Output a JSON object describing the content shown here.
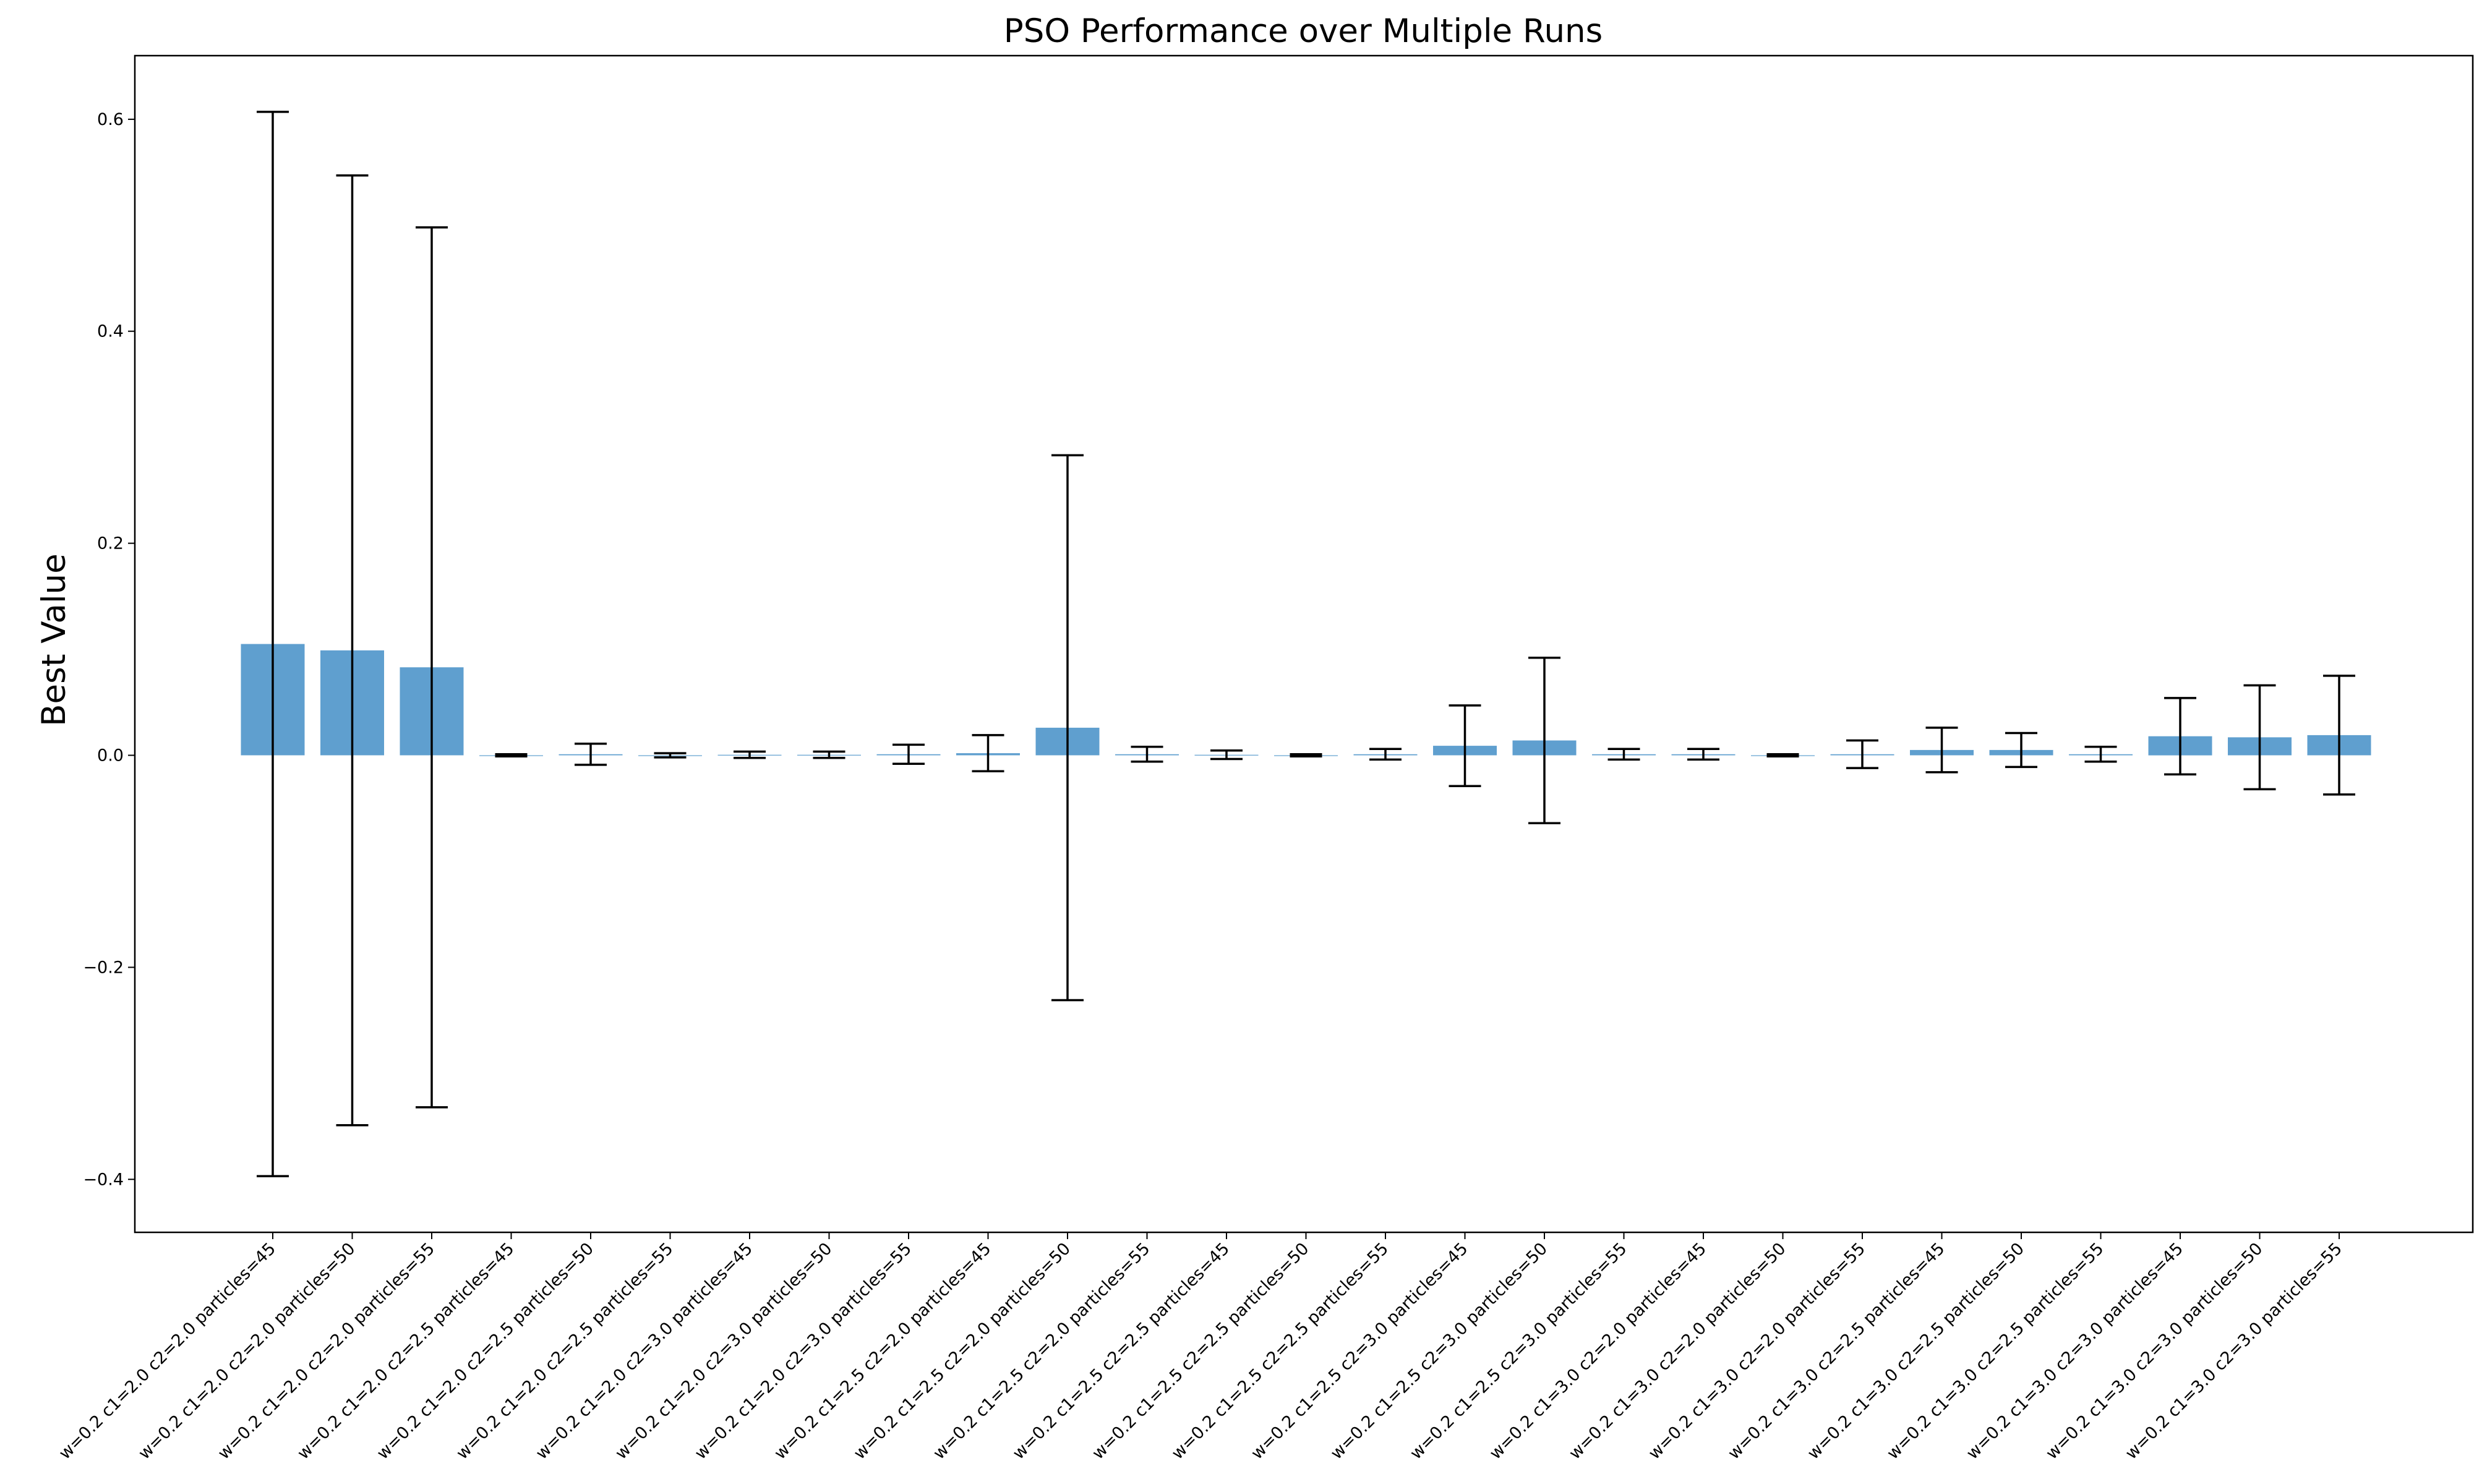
{
  "chart_data": {
    "type": "bar",
    "title": "PSO Performance over Multiple Runs",
    "xlabel": "",
    "ylabel": "Best Value",
    "ylim": [
      -0.45,
      0.66
    ],
    "yticks": [
      -0.4,
      -0.2,
      0.0,
      0.2,
      0.4,
      0.6
    ],
    "ytick_labels": [
      "−0.4",
      "−0.2",
      "0.0",
      "0.2",
      "0.4",
      "0.6"
    ],
    "bar_color": "#5f9fcf",
    "error_color": "#000000",
    "grid": false,
    "categories": [
      "w=0.2 c1=2.0 c2=2.0 particles=45",
      "w=0.2 c1=2.0 c2=2.0 particles=50",
      "w=0.2 c1=2.0 c2=2.0 particles=55",
      "w=0.2 c1=2.0 c2=2.5 particles=45",
      "w=0.2 c1=2.0 c2=2.5 particles=50",
      "w=0.2 c1=2.0 c2=2.5 particles=55",
      "w=0.2 c1=2.0 c2=3.0 particles=45",
      "w=0.2 c1=2.0 c2=3.0 particles=50",
      "w=0.2 c1=2.0 c2=3.0 particles=55",
      "w=0.2 c1=2.5 c2=2.0 particles=45",
      "w=0.2 c1=2.5 c2=2.0 particles=50",
      "w=0.2 c1=2.5 c2=2.0 particles=55",
      "w=0.2 c1=2.5 c2=2.5 particles=45",
      "w=0.2 c1=2.5 c2=2.5 particles=50",
      "w=0.2 c1=2.5 c2=2.5 particles=55",
      "w=0.2 c1=2.5 c2=3.0 particles=45",
      "w=0.2 c1=2.5 c2=3.0 particles=50",
      "w=0.2 c1=2.5 c2=3.0 particles=55",
      "w=0.2 c1=3.0 c2=2.0 particles=45",
      "w=0.2 c1=3.0 c2=2.0 particles=50",
      "w=0.2 c1=3.0 c2=2.0 particles=55",
      "w=0.2 c1=3.0 c2=2.5 particles=45",
      "w=0.2 c1=3.0 c2=2.5 particles=50",
      "w=0.2 c1=3.0 c2=2.5 particles=55",
      "w=0.2 c1=3.0 c2=3.0 particles=45",
      "w=0.2 c1=3.0 c2=3.0 particles=50",
      "w=0.2 c1=3.0 c2=3.0 particles=55"
    ],
    "values": [
      0.105,
      0.099,
      0.083,
      0.0,
      0.001,
      0.0,
      0.0005,
      0.0005,
      0.001,
      0.002,
      0.026,
      0.001,
      0.0005,
      0.0,
      0.001,
      0.009,
      0.014,
      0.001,
      0.001,
      0.0,
      0.001,
      0.005,
      0.005,
      0.001,
      0.018,
      0.017,
      0.019
    ],
    "errors": [
      0.502,
      0.448,
      0.415,
      0.001,
      0.01,
      0.002,
      0.003,
      0.003,
      0.009,
      0.017,
      0.257,
      0.007,
      0.004,
      0.001,
      0.005,
      0.038,
      0.078,
      0.005,
      0.005,
      0.001,
      0.013,
      0.021,
      0.016,
      0.007,
      0.036,
      0.049,
      0.056
    ]
  }
}
